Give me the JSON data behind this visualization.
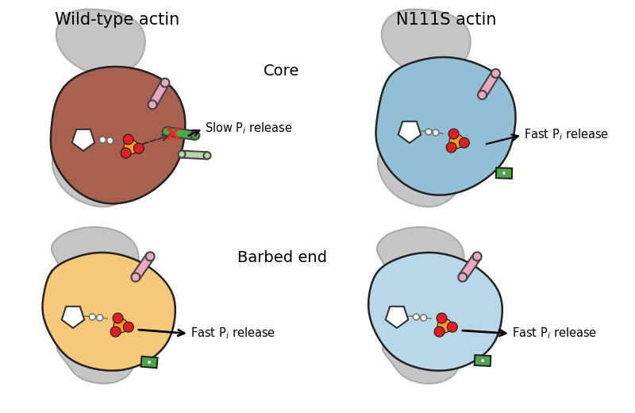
{
  "title_left": "Wild-type actin",
  "title_right": "N111S actin",
  "label_core": "Core",
  "label_barbed": "Barbed end",
  "bg_color": "#ffffff",
  "gray_color": "#c5c5c5",
  "gray_outline": "#999999",
  "brown_color": "#a8614e",
  "blue_core_color": "#93bfd4",
  "blue_barbed_color": "#b8d8ea",
  "orange_color": "#f5c87a",
  "pink_color": "#e8a8c0",
  "green_color": "#4aaa44",
  "light_green_color": "#b8d8a8",
  "orange_phosphate": "#f5a020",
  "red_phosphate": "#dd2020",
  "x_color": "#ff2020",
  "font_title": 15,
  "font_label": 13,
  "font_annot": 10.5
}
